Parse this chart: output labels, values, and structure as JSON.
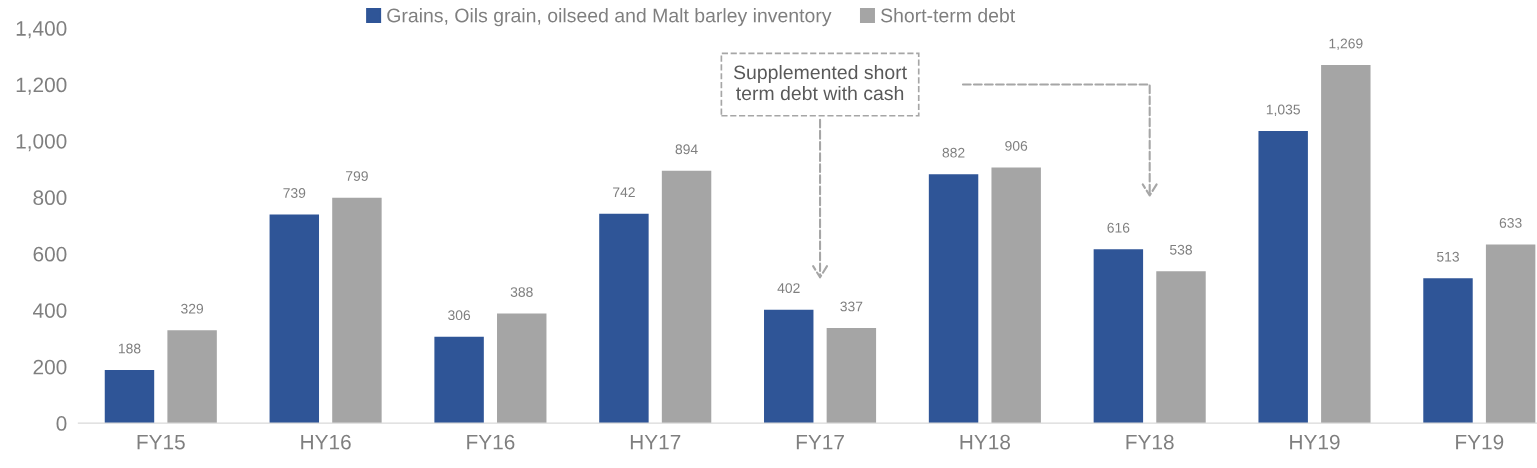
{
  "chart_data": {
    "type": "bar",
    "categories": [
      "FY15",
      "HY16",
      "FY16",
      "HY17",
      "FY17",
      "HY18",
      "FY18",
      "HY19",
      "FY19"
    ],
    "series": [
      {
        "name": "Grains, Oils grain, oilseed and Malt barley inventory",
        "color": "#2f5597",
        "values": [
          188,
          739,
          306,
          742,
          402,
          882,
          616,
          1035,
          513
        ],
        "value_labels": [
          "188",
          "739",
          "306",
          "742",
          "402",
          "882",
          "616",
          "1,035",
          "513"
        ]
      },
      {
        "name": "Short-term debt",
        "color": "#a5a5a5",
        "values": [
          329,
          799,
          388,
          894,
          337,
          906,
          538,
          1269,
          633
        ],
        "value_labels": [
          "329",
          "799",
          "388",
          "894",
          "337",
          "906",
          "538",
          "1,269",
          "633"
        ]
      }
    ],
    "ylim": [
      0,
      1400
    ],
    "yticks": [
      0,
      200,
      400,
      600,
      800,
      {
        "value": 1000,
        "label": "1,000"
      },
      {
        "value": 1200,
        "label": "1,200"
      },
      {
        "value": 1400,
        "label": "1,400"
      }
    ],
    "legend": "top",
    "grid": false,
    "annotations": [
      "Supplemented short\nterm debt with cash"
    ]
  }
}
